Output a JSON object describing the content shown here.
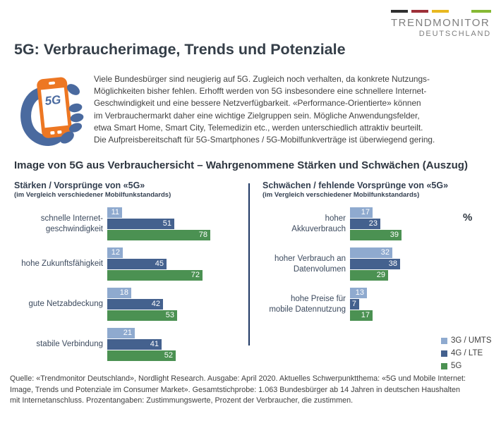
{
  "logo": {
    "line1": "TRENDMONITOR",
    "line2": "DEUTSCHLAND",
    "dash_colors": [
      "#2f2f2f",
      "#9e3039",
      "#e8b820",
      "#86b934"
    ]
  },
  "title": "5G: Verbraucherimage, Trends und Potenziale",
  "intro": {
    "icon_label": "5G",
    "text": "Viele Bundesbürger sind neugierig auf 5G. Zugleich noch verhalten, da konkrete Nutzungs-\nMöglichkeiten bisher fehlen. Erhofft werden von 5G insbesondere eine schnellere Internet-\nGeschwindigkeit und eine bessere Netzverfügbarkeit. «Performance-Orientierte» können\nim Verbrauchermarkt daher eine wichtige Zielgruppen sein. Mögliche Anwendungsfelder,\netwa Smart Home, Smart City, Telemedizin etc., werden unterschiedlich attraktiv beurteilt.\nDie Aufpreisbereitschaft für 5G-Smartphones / 5G-Mobilfunkverträge ist überwiegend gering."
  },
  "section_heading": "Image von 5G aus Verbrauchersicht – Wahrgenommene Stärken und Schwächen (Auszug)",
  "unit_label": "%",
  "chart_data": [
    {
      "type": "bar",
      "orientation": "horizontal",
      "title": "Stärken / Vorsprünge von «5G»",
      "subtitle": "(im Vergleich verschiedener Mobilfunkstandards)",
      "categories": [
        "schnelle Internet-\ngeschwindigkeit",
        "hohe Zukunftsfähigkeit",
        "gute Netzabdeckung",
        "stabile Verbindung"
      ],
      "series": [
        {
          "name": "3G / UMTS",
          "color": "#8faacf",
          "values": [
            11,
            12,
            18,
            21
          ]
        },
        {
          "name": "4G / LTE",
          "color": "#44618e",
          "values": [
            51,
            45,
            42,
            41
          ]
        },
        {
          "name": "5G",
          "color": "#4b9152",
          "values": [
            78,
            72,
            53,
            52
          ]
        }
      ],
      "unit": "%",
      "xlim": [
        0,
        100
      ],
      "grid": false,
      "value_labels": "inside bar end, white"
    },
    {
      "type": "bar",
      "orientation": "horizontal",
      "title": "Schwächen / fehlende Vorsprünge von «5G»",
      "subtitle": "(im Vergleich verschiedener Mobilfunkstandards)",
      "categories": [
        "hoher\nAkkuverbrauch",
        "hoher Verbrauch an\nDatenvolumen",
        "hohe Preise für\nmobile Datennutzung"
      ],
      "series": [
        {
          "name": "3G / UMTS",
          "color": "#8faacf",
          "values": [
            17,
            32,
            13
          ]
        },
        {
          "name": "4G / LTE",
          "color": "#44618e",
          "values": [
            23,
            38,
            7
          ]
        },
        {
          "name": "5G",
          "color": "#4b9152",
          "values": [
            39,
            29,
            17
          ]
        }
      ],
      "unit": "%",
      "xlim": [
        0,
        100
      ],
      "grid": false,
      "value_labels": "inside bar end, white",
      "legend_position": "bottom-right"
    }
  ],
  "footer": {
    "text": "Quelle: «Trendmonitor Deutschland», Nordlight Research. Ausgabe: April 2020. Aktuelles Schwerpunktthema: «5G und Mobile Internet:\nImage, Trends und Potenziale im Consumer Market». Gesamtstichprobe: 1.063 Bundesbürger ab 14 Jahren in deutschen Haushalten\nmit Internetanschluss. Prozentangaben: Zustimmungswerte, Prozent der Verbraucher, die zustimmen."
  }
}
